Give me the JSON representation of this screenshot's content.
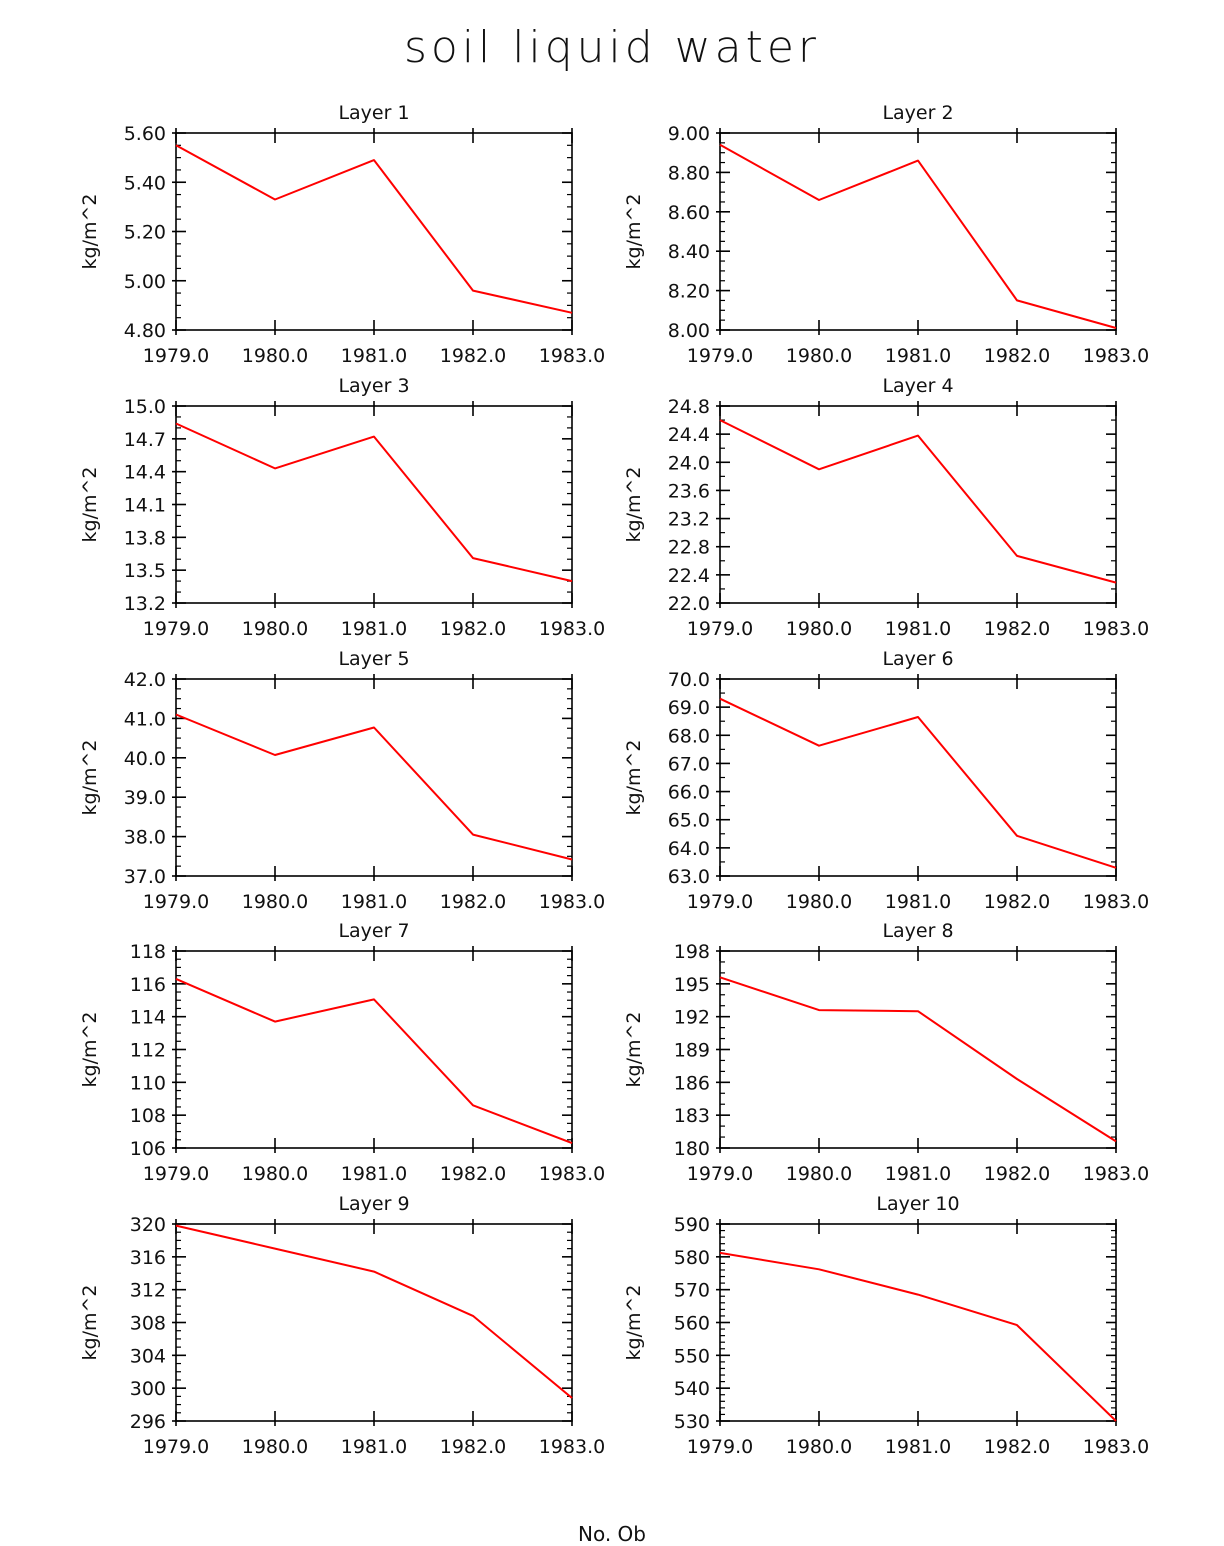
{
  "figure_title": "soil liquid water",
  "footer": "No. Ob",
  "colors": {
    "line": "#ff0000",
    "axis": "#000000"
  },
  "chart_data": [
    {
      "type": "line",
      "title": "Layer 1",
      "ylabel": "kg/m^2",
      "x": [
        1979,
        1980,
        1981,
        1982,
        1983
      ],
      "y": [
        5.55,
        5.33,
        5.49,
        4.96,
        4.87
      ],
      "ylim": [
        4.8,
        5.6
      ],
      "yticks": [
        "4.80",
        "5.00",
        "5.20",
        "5.40",
        "5.60"
      ],
      "xticks": [
        "1979.0",
        "1980.0",
        "1981.0",
        "1982.0",
        "1983.0"
      ],
      "yminor": 3
    },
    {
      "type": "line",
      "title": "Layer 2",
      "ylabel": "kg/m^2",
      "x": [
        1979,
        1980,
        1981,
        1982,
        1983
      ],
      "y": [
        8.94,
        8.66,
        8.86,
        8.15,
        8.01
      ],
      "ylim": [
        8.0,
        9.0
      ],
      "yticks": [
        "8.00",
        "8.20",
        "8.40",
        "8.60",
        "8.80",
        "9.00"
      ],
      "xticks": [
        "1979.0",
        "1980.0",
        "1981.0",
        "1982.0",
        "1983.0"
      ],
      "yminor": 3
    },
    {
      "type": "line",
      "title": "Layer 3",
      "ylabel": "kg/m^2",
      "x": [
        1979,
        1980,
        1981,
        1982,
        1983
      ],
      "y": [
        14.84,
        14.43,
        14.72,
        13.61,
        13.4
      ],
      "ylim": [
        13.2,
        15.0
      ],
      "yticks": [
        "13.2",
        "13.5",
        "13.8",
        "14.1",
        "14.4",
        "14.7",
        "15.0"
      ],
      "xticks": [
        "1979.0",
        "1980.0",
        "1981.0",
        "1982.0",
        "1983.0"
      ],
      "yminor": 2
    },
    {
      "type": "line",
      "title": "Layer 4",
      "ylabel": "kg/m^2",
      "x": [
        1979,
        1980,
        1981,
        1982,
        1983
      ],
      "y": [
        24.6,
        23.9,
        24.38,
        22.67,
        22.29
      ],
      "ylim": [
        22.0,
        24.8
      ],
      "yticks": [
        "22.0",
        "22.4",
        "22.8",
        "23.2",
        "23.6",
        "24.0",
        "24.4",
        "24.8"
      ],
      "xticks": [
        "1979.0",
        "1980.0",
        "1981.0",
        "1982.0",
        "1983.0"
      ],
      "yminor": 1
    },
    {
      "type": "line",
      "title": "Layer 5",
      "ylabel": "kg/m^2",
      "x": [
        1979,
        1980,
        1981,
        1982,
        1983
      ],
      "y": [
        41.1,
        40.07,
        40.77,
        38.05,
        37.42
      ],
      "ylim": [
        37.0,
        42.0
      ],
      "yticks": [
        "37.0",
        "38.0",
        "39.0",
        "40.0",
        "41.0",
        "42.0"
      ],
      "xticks": [
        "1979.0",
        "1980.0",
        "1981.0",
        "1982.0",
        "1983.0"
      ],
      "yminor": 3
    },
    {
      "type": "line",
      "title": "Layer 6",
      "ylabel": "kg/m^2",
      "x": [
        1979,
        1980,
        1981,
        1982,
        1983
      ],
      "y": [
        69.3,
        67.63,
        68.65,
        64.43,
        63.29
      ],
      "ylim": [
        63.0,
        70.0
      ],
      "yticks": [
        "63.0",
        "64.0",
        "65.0",
        "66.0",
        "67.0",
        "68.0",
        "69.0",
        "70.0"
      ],
      "xticks": [
        "1979.0",
        "1980.0",
        "1981.0",
        "1982.0",
        "1983.0"
      ],
      "yminor": 1
    },
    {
      "type": "line",
      "title": "Layer 7",
      "ylabel": "kg/m^2",
      "x": [
        1979,
        1980,
        1981,
        1982,
        1983
      ],
      "y": [
        116.3,
        113.7,
        115.05,
        108.6,
        106.3
      ],
      "ylim": [
        106,
        118
      ],
      "yticks": [
        "106",
        "108",
        "110",
        "112",
        "114",
        "116",
        "118"
      ],
      "xticks": [
        "1979.0",
        "1980.0",
        "1981.0",
        "1982.0",
        "1983.0"
      ],
      "yminor": 3
    },
    {
      "type": "line",
      "title": "Layer 8",
      "ylabel": "kg/m^2",
      "x": [
        1979,
        1980,
        1981,
        1982,
        1983
      ],
      "y": [
        195.6,
        192.6,
        192.5,
        186.3,
        180.6
      ],
      "ylim": [
        180,
        198
      ],
      "yticks": [
        "180",
        "183",
        "186",
        "189",
        "192",
        "195",
        "198"
      ],
      "xticks": [
        "1979.0",
        "1980.0",
        "1981.0",
        "1982.0",
        "1983.0"
      ],
      "yminor": 2
    },
    {
      "type": "line",
      "title": "Layer 9",
      "ylabel": "kg/m^2",
      "x": [
        1979,
        1980,
        1981,
        1982,
        1983
      ],
      "y": [
        319.8,
        317.0,
        314.2,
        308.8,
        298.8
      ],
      "ylim": [
        296,
        320
      ],
      "yticks": [
        "296",
        "300",
        "304",
        "308",
        "312",
        "316",
        "320"
      ],
      "xticks": [
        "1979.0",
        "1980.0",
        "1981.0",
        "1982.0",
        "1983.0"
      ],
      "yminor": 3
    },
    {
      "type": "line",
      "title": "Layer 10",
      "ylabel": "kg/m^2",
      "x": [
        1979,
        1980,
        1981,
        1982,
        1983
      ],
      "y": [
        581.2,
        576.2,
        568.5,
        559.2,
        530.0
      ],
      "ylim": [
        530,
        590
      ],
      "yticks": [
        "530",
        "540",
        "550",
        "560",
        "570",
        "580",
        "590"
      ],
      "xticks": [
        "1979.0",
        "1980.0",
        "1981.0",
        "1982.0",
        "1983.0"
      ],
      "yminor": 4
    }
  ]
}
